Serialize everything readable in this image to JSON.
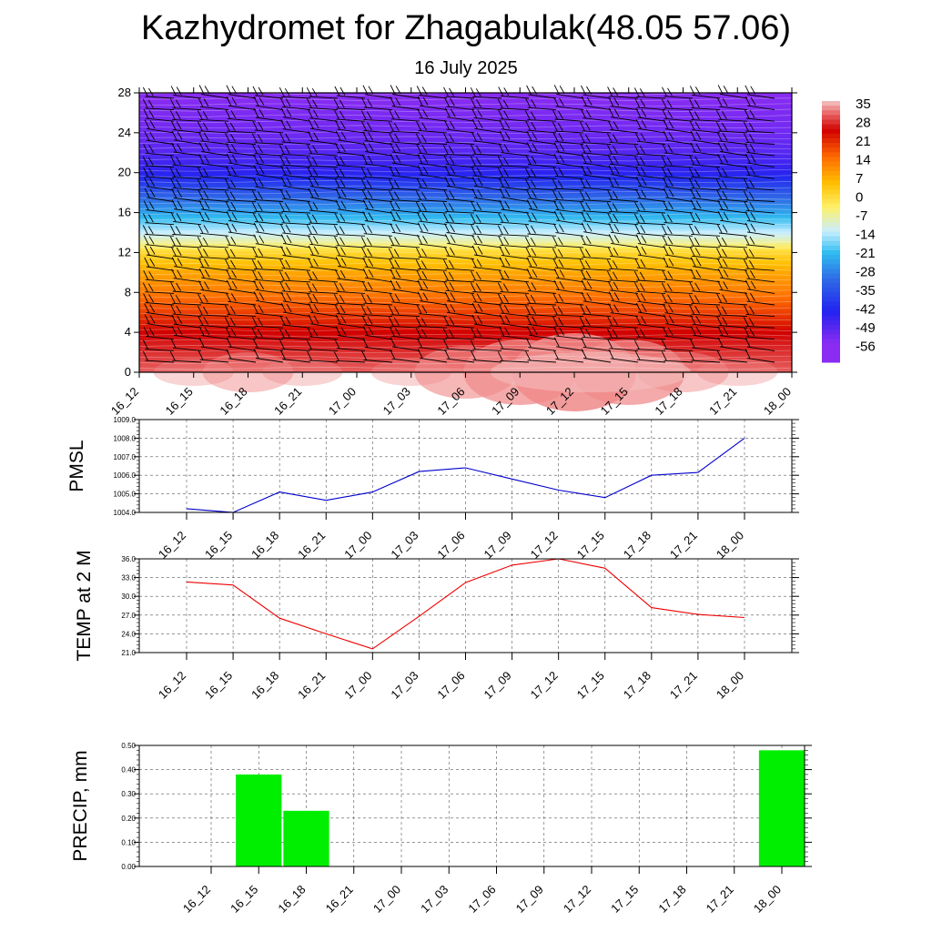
{
  "title": "Kazhydromet for Zhagabulak(48.05 57.06)",
  "subtitle": "16 July 2025",
  "time_labels": [
    "16_12",
    "16_15",
    "16_18",
    "16_21",
    "17_00",
    "17_03",
    "17_06",
    "17_09",
    "17_12",
    "17_15",
    "17_18",
    "17_21",
    "18_00"
  ],
  "chart_data": [
    {
      "type": "heatmap",
      "name": "temperature-cross-section",
      "y_ticks": [
        0,
        4,
        8,
        12,
        16,
        20,
        24,
        28
      ],
      "ylim": [
        0,
        28
      ],
      "colorbar": {
        "labels": [
          "35",
          "28",
          "21",
          "14",
          "7",
          "0",
          "-7",
          "-14",
          "-21",
          "-28",
          "-35",
          "-42",
          "-49",
          "-56"
        ],
        "stops": [
          {
            "v": 35,
            "color": "#f4c6c6"
          },
          {
            "v": 30,
            "color": "#e86060"
          },
          {
            "v": 24,
            "color": "#d10000"
          },
          {
            "v": 14,
            "color": "#ff6a00"
          },
          {
            "v": 4,
            "color": "#ffc000"
          },
          {
            "v": -5,
            "color": "#fff16a"
          },
          {
            "v": -14,
            "color": "#c8eeff"
          },
          {
            "v": -22,
            "color": "#30bcf0"
          },
          {
            "v": -32,
            "color": "#2f6ae6"
          },
          {
            "v": -44,
            "color": "#2222f0"
          },
          {
            "v": -56,
            "color": "#8a2cf2"
          }
        ]
      },
      "profile": [
        [
          0,
          30
        ],
        [
          2,
          27
        ],
        [
          4,
          24
        ],
        [
          6,
          18
        ],
        [
          8,
          12
        ],
        [
          10,
          7
        ],
        [
          12,
          0
        ],
        [
          13.4,
          -11
        ],
        [
          14.2,
          -15
        ],
        [
          16,
          -25
        ],
        [
          18,
          -35
        ],
        [
          20,
          -45
        ],
        [
          22,
          -50
        ],
        [
          24,
          -53
        ],
        [
          28,
          -56
        ]
      ],
      "surface_warm": [
        0,
        1,
        2,
        1,
        0,
        1,
        3,
        4,
        5,
        4,
        2,
        1,
        0
      ]
    },
    {
      "type": "line",
      "ylabel": "PMSL",
      "ylim": [
        1004.0,
        1009.0
      ],
      "y_ticks": [
        "1004.0",
        "1005.0",
        "1006.0",
        "1007.0",
        "1008.0",
        "1009.0"
      ],
      "series": [
        {
          "color": "#0000cc",
          "values": [
            1004.2,
            1004.0,
            1005.1,
            1004.65,
            1005.1,
            1006.2,
            1006.4,
            1005.8,
            1005.2,
            1004.8,
            1006.0,
            1006.15,
            1008.0
          ]
        }
      ]
    },
    {
      "type": "line",
      "ylabel": "TEMP at 2 M",
      "ylim": [
        21.0,
        36.0
      ],
      "y_ticks": [
        "21.0",
        "24.0",
        "27.0",
        "30.0",
        "33.0",
        "36.0"
      ],
      "series": [
        {
          "color": "#ee0000",
          "values": [
            32.3,
            31.8,
            26.5,
            24.0,
            21.6,
            26.8,
            32.2,
            35.0,
            36.0,
            34.5,
            28.2,
            27.1,
            26.6
          ]
        }
      ]
    },
    {
      "type": "bar",
      "ylabel": "PRECIP, mm",
      "ylim": [
        0,
        0.5
      ],
      "y_ticks": [
        "0.00",
        "0.10",
        "0.20",
        "0.30",
        "0.40",
        "0.50"
      ],
      "color": "#00ee00",
      "values": [
        0,
        0.38,
        0.23,
        0,
        0,
        0,
        0,
        0,
        0,
        0,
        0,
        0,
        0.48
      ]
    }
  ]
}
